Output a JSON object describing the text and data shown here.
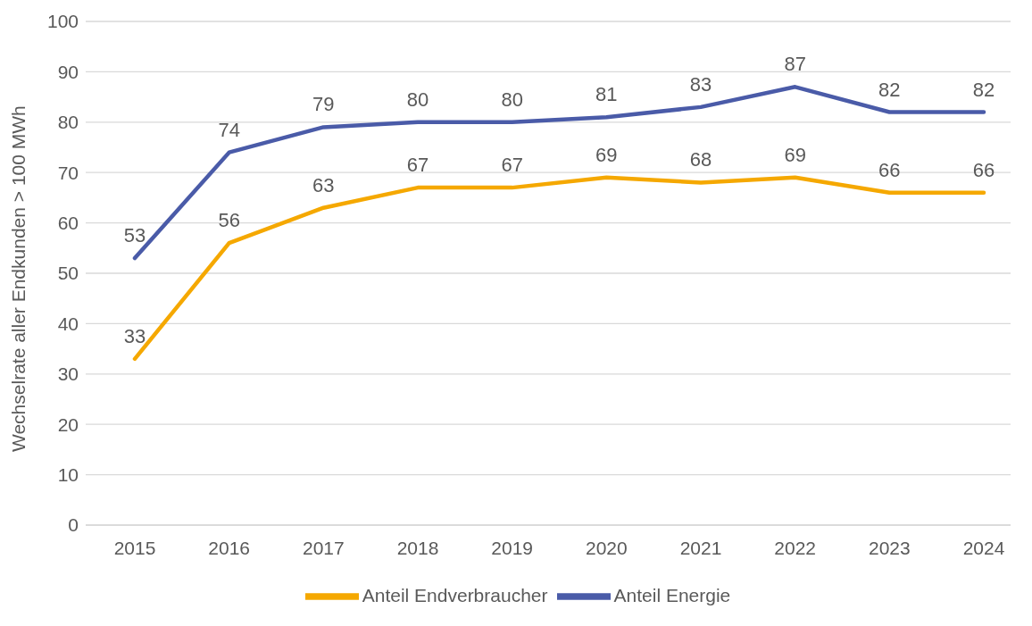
{
  "chart_data": {
    "type": "line",
    "ylabel": "Wechselrate aller Endkunden > 100 MWh",
    "categories": [
      "2015",
      "2016",
      "2017",
      "2018",
      "2019",
      "2020",
      "2021",
      "2022",
      "2023",
      "2024"
    ],
    "series": [
      {
        "name": "Anteil Endverbraucher",
        "color": "#f5a800",
        "values": [
          33,
          56,
          63,
          67,
          67,
          69,
          68,
          69,
          66,
          66
        ]
      },
      {
        "name": "Anteil Energie",
        "color": "#4a5ba8",
        "values": [
          53,
          74,
          79,
          80,
          80,
          81,
          83,
          87,
          82,
          82
        ]
      }
    ],
    "ylim": [
      0,
      100
    ],
    "yticks": [
      0,
      10,
      20,
      30,
      40,
      50,
      60,
      70,
      80,
      90,
      100
    ],
    "grid": "y",
    "legend": "bottom",
    "data_labels": true,
    "marker": "none",
    "line_style": "solid"
  }
}
